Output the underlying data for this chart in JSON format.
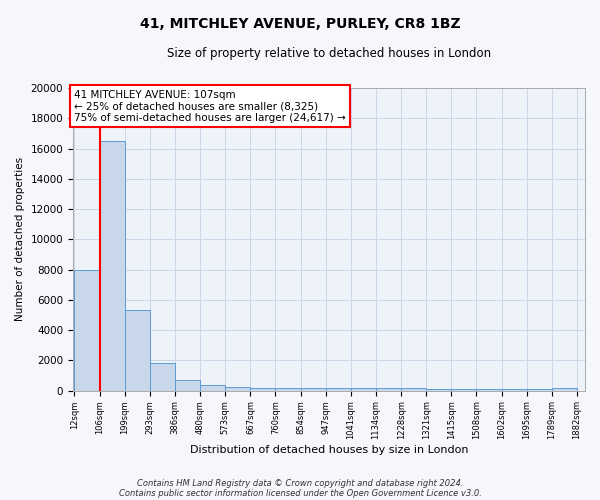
{
  "title": "41, MITCHLEY AVENUE, PURLEY, CR8 1BZ",
  "subtitle": "Size of property relative to detached houses in London",
  "xlabel": "Distribution of detached houses by size in London",
  "ylabel": "Number of detached properties",
  "bar_edges": [
    12,
    106,
    199,
    293,
    386,
    480,
    573,
    667,
    760,
    854,
    947,
    1041,
    1134,
    1228,
    1321,
    1415,
    1508,
    1602,
    1695,
    1789,
    1882
  ],
  "bar_heights": [
    8000,
    16500,
    5300,
    1800,
    700,
    350,
    250,
    200,
    150,
    150,
    150,
    150,
    150,
    150,
    130,
    130,
    130,
    130,
    130,
    200
  ],
  "bar_color": "#c8d8ea",
  "bar_edge_color": "#5b9bd5",
  "red_line_x": 107,
  "annotation_line1": "41 MITCHLEY AVENUE: 107sqm",
  "annotation_line2": "← 25% of detached houses are smaller (8,325)",
  "annotation_line3": "75% of semi-detached houses are larger (24,617) →",
  "footnote1": "Contains HM Land Registry data © Crown copyright and database right 2024.",
  "footnote2": "Contains public sector information licensed under the Open Government Licence v3.0.",
  "ylim": [
    0,
    20000
  ],
  "yticks": [
    0,
    2000,
    4000,
    6000,
    8000,
    10000,
    12000,
    14000,
    16000,
    18000,
    20000
  ],
  "tick_labels": [
    "12sqm",
    "106sqm",
    "199sqm",
    "293sqm",
    "386sqm",
    "480sqm",
    "573sqm",
    "667sqm",
    "760sqm",
    "854sqm",
    "947sqm",
    "1041sqm",
    "1134sqm",
    "1228sqm",
    "1321sqm",
    "1415sqm",
    "1508sqm",
    "1602sqm",
    "1695sqm",
    "1789sqm",
    "1882sqm"
  ],
  "grid_color": "#ccd6e8",
  "background_color": "#eef2f9",
  "fig_bg_color": "#f5f7fc"
}
